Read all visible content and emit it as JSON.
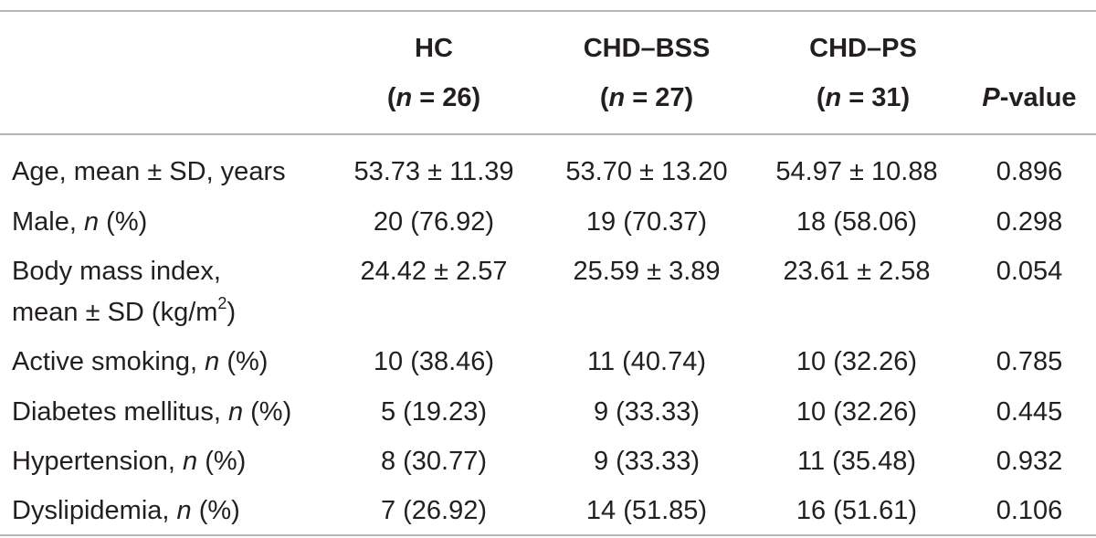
{
  "header": {
    "col_hc": {
      "name": "HC",
      "n_pre": "(",
      "n_it": "n",
      "n_post": " = 26)"
    },
    "col_bss": {
      "name": "CHD–BSS",
      "n_pre": "(",
      "n_it": "n",
      "n_post": " = 27)"
    },
    "col_ps": {
      "name": "CHD–PS",
      "n_pre": "(",
      "n_it": "n",
      "n_post": " = 31)"
    },
    "col_p": {
      "p_it": "P",
      "p_rest": "-value"
    }
  },
  "rows": [
    {
      "label_pre": "Age, mean ± SD, years",
      "label_it": "",
      "label_post": "",
      "hc": "53.73 ± 11.39",
      "bss": "53.70 ± 13.20",
      "ps": "54.97 ± 10.88",
      "p": "0.896"
    },
    {
      "label_pre": "Male, ",
      "label_it": "n",
      "label_post": " (%)",
      "hc": "20 (76.92)",
      "bss": "19 (70.37)",
      "ps": "18 (58.06)",
      "p": "0.298"
    },
    {
      "label_line1": "Body mass index,",
      "label_line2_pre": "mean ± SD (kg/m",
      "label_line2_sup": "2",
      "label_line2_post": ")",
      "hc": "24.42 ± 2.57",
      "bss": "25.59 ± 3.89",
      "ps": "23.61 ± 2.58",
      "p": "0.054"
    },
    {
      "label_pre": "Active smoking, ",
      "label_it": "n",
      "label_post": " (%)",
      "hc": "10 (38.46)",
      "bss": "11 (40.74)",
      "ps": "10 (32.26)",
      "p": "0.785"
    },
    {
      "label_pre": "Diabetes mellitus, ",
      "label_it": "n",
      "label_post": " (%)",
      "hc": "5 (19.23)",
      "bss": "9 (33.33)",
      "ps": "10 (32.26)",
      "p": "0.445"
    },
    {
      "label_pre": "Hypertension, ",
      "label_it": "n",
      "label_post": " (%)",
      "hc": "8 (30.77)",
      "bss": "9 (33.33)",
      "ps": "11 (35.48)",
      "p": "0.932"
    },
    {
      "label_pre": "Dyslipidemia, ",
      "label_it": "n",
      "label_post": " (%)",
      "hc": "7 (26.92)",
      "bss": "14 (51.85)",
      "ps": "16 (51.61)",
      "p": "0.106"
    }
  ],
  "colors": {
    "text": "#231f20",
    "rule": "#b5b5b5"
  }
}
